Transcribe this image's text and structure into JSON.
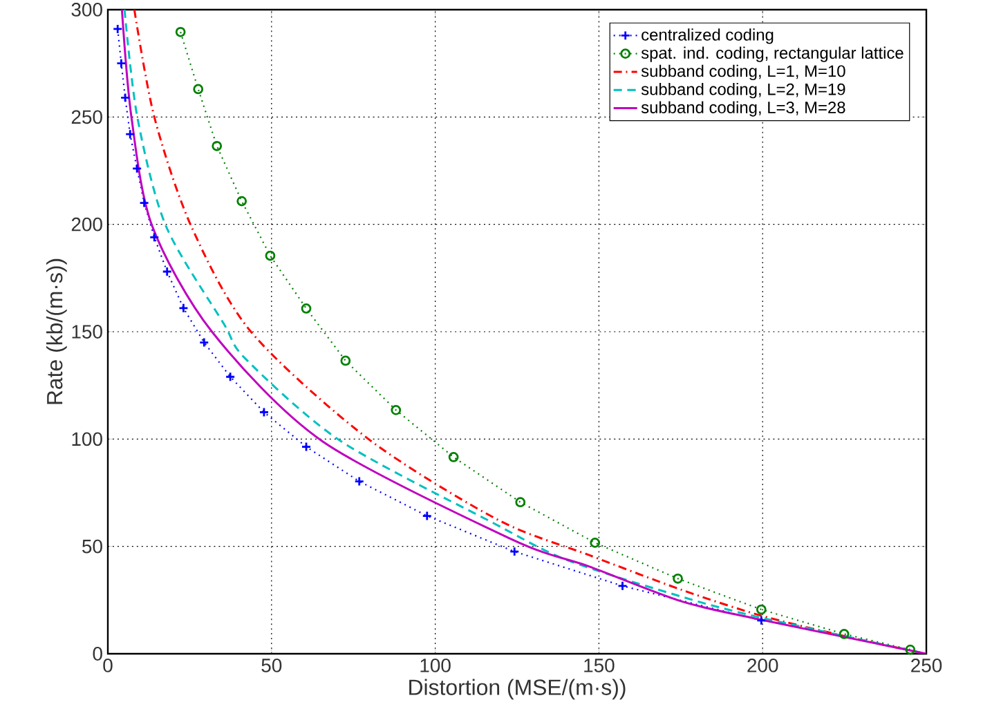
{
  "chart_data": {
    "type": "line",
    "xlabel": "Distortion (MSE/(m·s))",
    "ylabel": "Rate (kb/(m·s))",
    "xlim": [
      0,
      250
    ],
    "ylim": [
      0,
      300
    ],
    "xticks": [
      0,
      50,
      100,
      150,
      200,
      250
    ],
    "yticks": [
      0,
      50,
      100,
      150,
      200,
      250,
      300
    ],
    "grid": true,
    "legend": "top right",
    "series": [
      {
        "name": "centralized coding",
        "color": "#0000ff",
        "marker": "cross",
        "line_style": "dotted",
        "x": [
          3.0,
          4.1,
          5.3,
          6.8,
          8.9,
          11.1,
          14.2,
          18.1,
          23.1,
          29.4,
          37.4,
          47.7,
          60.6,
          76.8,
          97.5,
          124.2,
          157.2,
          199.6
        ],
        "values": [
          291,
          275,
          259,
          242,
          226,
          210,
          194,
          178,
          161,
          145,
          129,
          112.5,
          96.4,
          80.3,
          64.2,
          47.6,
          31.6,
          15.5
        ]
      },
      {
        "name": "spat. ind. coding, rectangular lattice",
        "color": "#008000",
        "marker": "circle",
        "line_style": "dotted",
        "x": [
          22.2,
          27.6,
          33.3,
          40.9,
          49.6,
          60.6,
          72.6,
          88.0,
          105.6,
          126.0,
          148.8,
          174.1,
          199.6,
          224.9,
          245.1
        ],
        "values": [
          289.6,
          263,
          236.5,
          210.8,
          185.4,
          160.8,
          136.5,
          113.5,
          91.6,
          70.6,
          51.7,
          35.0,
          20.6,
          9.2,
          1.9
        ]
      },
      {
        "name": "subband coding, L=1, M=10",
        "color": "#ff0000",
        "marker": "none",
        "line_style": "dashdot",
        "x": [
          8.1,
          14.2,
          25.4,
          43.7,
          79.6,
          119,
          147.1,
          175.2,
          199,
          224.5,
          249.8
        ],
        "values": [
          300,
          250,
          199.4,
          150,
          100,
          62.5,
          45.9,
          29.8,
          18,
          8.4,
          0
        ]
      },
      {
        "name": "subband coding, L=2, M=19",
        "color": "#00c0c0",
        "marker": "none",
        "line_style": "dashed",
        "x": [
          5.1,
          9.0,
          17.7,
          35.3,
          42.3,
          71.2,
          117.6,
          140,
          175.2,
          199,
          250
        ],
        "values": [
          300,
          250,
          199.4,
          154,
          137,
          99,
          61,
          43.8,
          26.6,
          17,
          0
        ]
      },
      {
        "name": "subband coding, L=3, M=28",
        "color": "#bf00bf",
        "marker": "none",
        "line_style": "solid",
        "x": [
          4.3,
          7.2,
          13.5,
          31.8,
          65.5,
          123.2,
          147.1,
          175.2,
          199,
          250
        ],
        "values": [
          300,
          250,
          199.4,
          150,
          99,
          53.4,
          40.6,
          24.4,
          16,
          0
        ]
      }
    ]
  }
}
